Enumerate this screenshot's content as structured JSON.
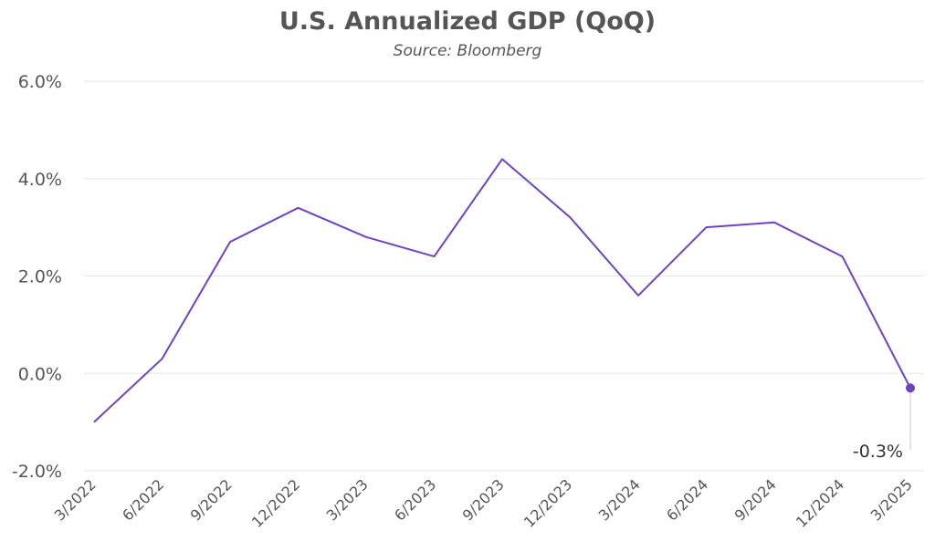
{
  "chart_data": {
    "type": "line",
    "title": "U.S. Annualized GDP (QoQ)",
    "subtitle": "Source: Bloomberg",
    "x": [
      "3/2022",
      "6/2022",
      "9/2022",
      "12/2022",
      "3/2023",
      "6/2023",
      "9/2023",
      "12/2023",
      "3/2024",
      "6/2024",
      "9/2024",
      "12/2024",
      "3/2025"
    ],
    "series": [
      {
        "values": [
          -1.0,
          0.3,
          2.7,
          3.4,
          2.8,
          2.4,
          4.4,
          3.2,
          1.6,
          3.0,
          3.1,
          2.4,
          -0.3
        ]
      }
    ],
    "ylim": [
      -2.0,
      6.0
    ],
    "yticks": [
      6.0,
      4.0,
      2.0,
      0.0,
      -2.0
    ],
    "ytick_labels": [
      "6.0%",
      "4.0%",
      "2.0%",
      "0.0%",
      "-2.0%"
    ],
    "grid": true,
    "line_color": "#6f42c1",
    "annotation": {
      "index": 12,
      "text": "-0.3%"
    }
  }
}
